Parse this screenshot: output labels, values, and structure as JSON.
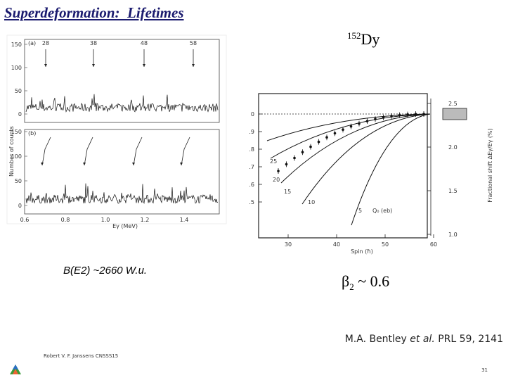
{
  "header": {
    "title": "Superdeformation:  Lifetimes"
  },
  "nucleus": {
    "mass": "152",
    "symbol": "Dy"
  },
  "left_figure": {
    "panel_labels": [
      "(a)",
      "(b)"
    ],
    "y_ticks": [
      "150",
      "100",
      "50",
      "0"
    ],
    "y_label": "Number of counts",
    "arrow_labels": [
      "28",
      "38",
      "48",
      "58"
    ],
    "x_ticks": [
      "0.6",
      "0.8",
      "1.0",
      "1.2",
      "1.4"
    ],
    "x_label": "Eγ (MeV)"
  },
  "right_figure": {
    "left_ticks": [
      "0",
      ".9",
      ".8",
      ".7",
      ".6",
      ".5"
    ],
    "right_ticks": [
      "2.5",
      "2.0",
      "1.5",
      "1.0"
    ],
    "right_label": "Fractional shift ΔEγ/Eγ (%)",
    "x_ticks": [
      "30",
      "40",
      "50",
      "60"
    ],
    "x_label": "Spin (ħ)",
    "curve_labels": [
      "25",
      "20",
      "15",
      "10",
      "5"
    ],
    "q_label": "Q₀ (eb)"
  },
  "annotations": {
    "be2": "B(E2) ~2660 W.u.",
    "beta_symbol": "β",
    "beta_sub": "2",
    "beta_rest": " ~ 0.6"
  },
  "citation": {
    "authors": "M.A. Bentley ",
    "etal": "et al.",
    "journal": " PRL 59, 2141"
  },
  "footer": {
    "author": "Robert V. F. Janssens CNSSS15",
    "page": "31"
  }
}
